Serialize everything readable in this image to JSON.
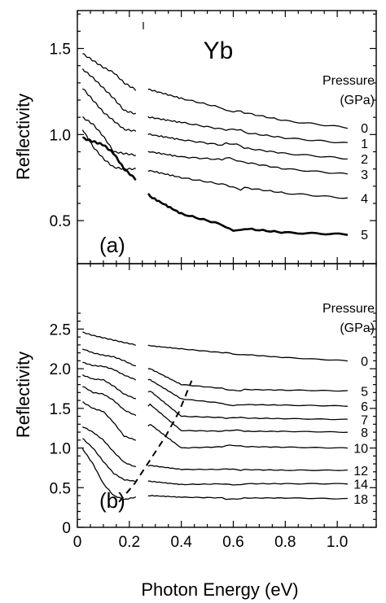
{
  "figure": {
    "x_axis_label": "Photon Energy (eV)",
    "x_tick_labels": [
      "0",
      "0.2",
      "0.4",
      "0.6",
      "0.8",
      "1.0"
    ]
  },
  "chart_data": [
    {
      "type": "line",
      "panel": "(a)",
      "title": "Yb",
      "xlabel": "Photon Energy (eV)",
      "ylabel": "Reflectivity",
      "xlim": [
        0,
        1.15
      ],
      "ylim": [
        0.25,
        1.72
      ],
      "yticks": [
        "0.5",
        "1.0",
        "1.5"
      ],
      "legend_title": [
        "Pressure",
        "(GPa)"
      ],
      "series": [
        {
          "name": "0",
          "x": [
            0.02,
            0.06,
            0.1,
            0.14,
            0.18,
            0.225,
            0.28,
            0.4,
            0.6,
            0.8,
            1.04
          ],
          "y": [
            1.47,
            1.43,
            1.39,
            1.36,
            1.3,
            1.26,
            1.26,
            1.21,
            1.14,
            1.08,
            1.04
          ]
        },
        {
          "name": "1",
          "x": [
            0.02,
            0.06,
            0.1,
            0.14,
            0.18,
            0.225,
            0.28,
            0.4,
            0.6,
            0.8,
            1.04
          ],
          "y": [
            1.38,
            1.33,
            1.27,
            1.21,
            1.14,
            1.12,
            1.1,
            1.07,
            1.02,
            0.98,
            0.95
          ]
        },
        {
          "name": "2",
          "x": [
            0.02,
            0.06,
            0.1,
            0.14,
            0.18,
            0.225,
            0.28,
            0.4,
            0.6,
            0.8,
            1.04
          ],
          "y": [
            1.27,
            1.2,
            1.13,
            1.08,
            1.03,
            1.02,
            1.0,
            0.97,
            0.93,
            0.89,
            0.86
          ]
        },
        {
          "name": "3",
          "x": [
            0.02,
            0.06,
            0.1,
            0.14,
            0.18,
            0.225,
            0.28,
            0.4,
            0.6,
            0.8,
            1.04
          ],
          "y": [
            1.1,
            1.06,
            0.99,
            0.9,
            0.89,
            0.88,
            0.9,
            0.87,
            0.85,
            0.8,
            0.77
          ]
        },
        {
          "name": "4",
          "x": [
            0.02,
            0.06,
            0.1,
            0.14,
            0.18,
            0.225,
            0.28,
            0.4,
            0.6,
            0.8,
            1.04
          ],
          "y": [
            1.03,
            0.93,
            0.86,
            0.81,
            0.8,
            0.8,
            0.79,
            0.75,
            0.7,
            0.66,
            0.63
          ]
        },
        {
          "name": "5",
          "x": [
            0.02,
            0.06,
            0.1,
            0.14,
            0.18,
            0.225,
            0.28,
            0.4,
            0.6,
            0.8,
            1.04
          ],
          "y": [
            0.98,
            0.96,
            0.94,
            0.89,
            0.8,
            0.74,
            0.64,
            0.54,
            0.46,
            0.43,
            0.42
          ]
        }
      ]
    },
    {
      "type": "line",
      "panel": "(b)",
      "xlabel": "Photon Energy (eV)",
      "ylabel": "Reflectivity",
      "xlim": [
        0,
        1.15
      ],
      "ylim": [
        0,
        2.75
      ],
      "yticks": [
        "0",
        "0.5",
        "1.0",
        "1.5",
        "2.0",
        "2.5"
      ],
      "legend_title": [
        "Pressure",
        "(GPa)"
      ],
      "series": [
        {
          "name": "0",
          "x": [
            0.02,
            0.06,
            0.1,
            0.14,
            0.18,
            0.225,
            0.28,
            0.4,
            0.6,
            0.8,
            1.04
          ],
          "y": [
            2.46,
            2.42,
            2.39,
            2.36,
            2.33,
            2.3,
            2.29,
            2.25,
            2.19,
            2.14,
            2.1
          ]
        },
        {
          "name": "5",
          "x": [
            0.02,
            0.06,
            0.1,
            0.14,
            0.18,
            0.225,
            0.28,
            0.4,
            0.6,
            0.8,
            1.04
          ],
          "y": [
            2.25,
            2.2,
            2.17,
            2.15,
            2.1,
            2.03,
            2.0,
            1.8,
            1.74,
            1.73,
            1.72
          ]
        },
        {
          "name": "6",
          "x": [
            0.02,
            0.06,
            0.1,
            0.14,
            0.18,
            0.225,
            0.28,
            0.4,
            0.6,
            0.8,
            1.04
          ],
          "y": [
            2.08,
            2.04,
            2.03,
            1.99,
            1.92,
            1.86,
            1.86,
            1.62,
            1.55,
            1.54,
            1.53
          ]
        },
        {
          "name": "7",
          "x": [
            0.02,
            0.06,
            0.1,
            0.14,
            0.18,
            0.225,
            0.28,
            0.4,
            0.6,
            0.8,
            1.04
          ],
          "y": [
            1.92,
            1.87,
            1.86,
            1.78,
            1.68,
            1.62,
            1.72,
            1.4,
            1.38,
            1.37,
            1.36
          ]
        },
        {
          "name": "8",
          "x": [
            0.02,
            0.06,
            0.1,
            0.14,
            0.18,
            0.225,
            0.28,
            0.4,
            0.6,
            0.8,
            1.04
          ],
          "y": [
            1.78,
            1.7,
            1.68,
            1.6,
            1.48,
            1.41,
            1.55,
            1.22,
            1.21,
            1.21,
            1.2
          ]
        },
        {
          "name": "10",
          "x": [
            0.02,
            0.06,
            0.1,
            0.14,
            0.18,
            0.225,
            0.28,
            0.4,
            0.6,
            0.8,
            1.04
          ],
          "y": [
            1.58,
            1.5,
            1.46,
            1.32,
            1.15,
            1.1,
            1.3,
            1.0,
            1.02,
            1.01,
            1.0
          ]
        },
        {
          "name": "12",
          "x": [
            0.02,
            0.06,
            0.1,
            0.14,
            0.18,
            0.225,
            0.28,
            0.4,
            0.6,
            0.8,
            1.04
          ],
          "y": [
            1.27,
            1.2,
            1.1,
            0.95,
            0.82,
            0.76,
            0.78,
            0.73,
            0.73,
            0.72,
            0.72
          ]
        },
        {
          "name": "14",
          "x": [
            0.02,
            0.06,
            0.1,
            0.14,
            0.18,
            0.225,
            0.28,
            0.4,
            0.6,
            0.8,
            1.04
          ],
          "y": [
            1.12,
            1.0,
            0.83,
            0.68,
            0.6,
            0.58,
            0.58,
            0.54,
            0.55,
            0.55,
            0.55
          ]
        },
        {
          "name": "18",
          "x": [
            0.02,
            0.06,
            0.1,
            0.14,
            0.18,
            0.225,
            0.28,
            0.4,
            0.6,
            0.8,
            1.04
          ],
          "y": [
            0.99,
            0.8,
            0.55,
            0.4,
            0.35,
            0.38,
            0.4,
            0.38,
            0.37,
            0.37,
            0.36
          ]
        }
      ],
      "dashed_guide": {
        "x": [
          0.16,
          0.22,
          0.28,
          0.34,
          0.39,
          0.44
        ],
        "y": [
          0.32,
          0.55,
          0.85,
          1.15,
          1.45,
          1.85
        ]
      }
    }
  ]
}
